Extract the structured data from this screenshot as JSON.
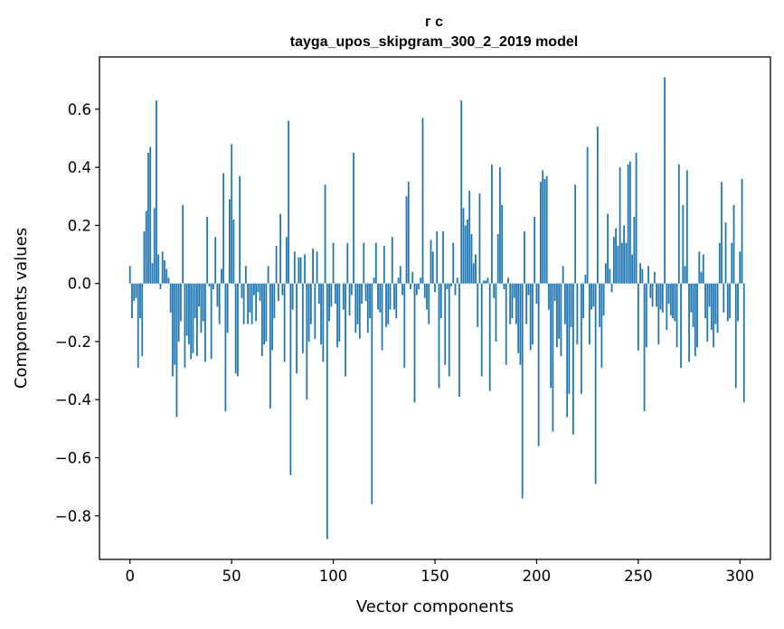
{
  "chart_data": {
    "type": "bar",
    "title": "г с",
    "subtitle": "tayga_upos_skipgram_300_2_2019 model",
    "xlabel": "Vector components",
    "ylabel": "Components values",
    "xlim": [
      -15,
      315
    ],
    "ylim": [
      -0.95,
      0.78
    ],
    "xticks": [
      0,
      50,
      100,
      150,
      200,
      250,
      300
    ],
    "xtick_labels": [
      "0",
      "50",
      "100",
      "150",
      "200",
      "250",
      "300"
    ],
    "yticks": [
      -0.8,
      -0.6,
      -0.4,
      -0.2,
      0.0,
      0.2,
      0.4,
      0.6
    ],
    "ytick_labels": [
      "−0.8",
      "−0.6",
      "−0.4",
      "−0.2",
      "0.0",
      "0.2",
      "0.4",
      "0.6"
    ],
    "bar_color": "#1f77b4",
    "values": [
      0.06,
      -0.12,
      -0.06,
      -0.05,
      -0.29,
      -0.12,
      -0.25,
      0.18,
      0.25,
      0.45,
      0.47,
      0.07,
      0.26,
      0.63,
      0.1,
      -0.02,
      0.11,
      0.08,
      0.05,
      0.02,
      -0.1,
      -0.32,
      -0.28,
      -0.46,
      -0.2,
      -0.13,
      0.27,
      -0.29,
      -0.18,
      -0.21,
      -0.26,
      -0.24,
      -0.12,
      -0.25,
      -0.08,
      -0.17,
      -0.13,
      -0.27,
      0.23,
      -0.01,
      -0.26,
      -0.02,
      0.16,
      -0.08,
      -0.14,
      0.05,
      0.38,
      -0.44,
      -0.17,
      0.29,
      0.48,
      0.22,
      -0.31,
      -0.32,
      0.37,
      -0.05,
      -0.14,
      0.06,
      -0.14,
      -0.1,
      -0.14,
      -0.04,
      -0.13,
      -0.03,
      -0.06,
      -0.25,
      -0.21,
      -0.2,
      0.06,
      -0.43,
      -0.23,
      -0.12,
      0.13,
      -0.06,
      0.24,
      -0.04,
      -0.27,
      0.16,
      0.56,
      -0.66,
      -0.09,
      0.11,
      -0.31,
      0.09,
      0.09,
      -0.24,
      0.1,
      -0.4,
      -0.2,
      -0.14,
      0.12,
      -0.19,
      0.11,
      -0.07,
      -0.21,
      -0.27,
      0.34,
      -0.88,
      -0.13,
      -0.08,
      0.14,
      -0.07,
      -0.22,
      -0.2,
      0.0,
      -0.09,
      -0.32,
      0.14,
      -0.11,
      -0.04,
      0.45,
      -0.17,
      -0.14,
      -0.19,
      -0.07,
      0.14,
      -0.06,
      -0.17,
      -0.12,
      -0.76,
      0.02,
      0.14,
      -0.09,
      -0.1,
      -0.23,
      0.13,
      -0.15,
      -0.14,
      -0.09,
      0.16,
      -0.09,
      -0.12,
      0.02,
      0.06,
      -0.04,
      -0.29,
      0.3,
      0.35,
      -0.02,
      0.04,
      -0.41,
      -0.04,
      -0.02,
      0.02,
      0.57,
      -0.05,
      -0.09,
      -0.14,
      0.15,
      0.11,
      -0.03,
      0.18,
      -0.36,
      -0.12,
      0.18,
      -0.28,
      -0.02,
      -0.32,
      -0.01,
      0.14,
      -0.04,
      0.02,
      -0.39,
      0.63,
      0.26,
      0.2,
      0.22,
      0.32,
      0.17,
      0.07,
      0.1,
      -0.15,
      0.31,
      -0.32,
      0.01,
      0.01,
      0.02,
      -0.37,
      0.41,
      -0.05,
      -0.2,
      0.17,
      0.4,
      0.27,
      -0.02,
      -0.28,
      0.02,
      -0.14,
      -0.12,
      -0.05,
      -0.14,
      -0.24,
      -0.28,
      -0.74,
      0.18,
      -0.14,
      -0.04,
      -0.23,
      -0.21,
      0.23,
      -0.07,
      -0.56,
      0.35,
      0.39,
      0.36,
      0.37,
      -0.09,
      -0.36,
      -0.51,
      -0.06,
      -0.22,
      -0.19,
      -0.25,
      0.06,
      -0.14,
      -0.46,
      -0.38,
      -0.15,
      -0.52,
      0.34,
      -0.21,
      0.0,
      -0.38,
      -0.12,
      0.03,
      0.47,
      -0.21,
      -0.09,
      -0.08,
      -0.69,
      0.54,
      -0.15,
      -0.29,
      -0.11,
      0.07,
      0.24,
      0.05,
      -0.03,
      0.16,
      0.19,
      0.13,
      0.4,
      0.14,
      0.2,
      0.14,
      0.41,
      0.42,
      0.1,
      0.23,
      0.45,
      -0.23,
      0.07,
      0.05,
      -0.44,
      -0.22,
      0.06,
      -0.05,
      -0.08,
      0.04,
      -0.08,
      -0.21,
      -0.09,
      -0.1,
      0.71,
      -0.16,
      -0.07,
      -0.11,
      -0.12,
      -0.13,
      -0.22,
      0.41,
      -0.29,
      0.27,
      0.06,
      0.39,
      -0.27,
      -0.1,
      -0.15,
      -0.25,
      -0.22,
      0.11,
      0.04,
      0.1,
      -0.12,
      -0.2,
      -0.08,
      -0.16,
      -0.22,
      -0.14,
      -0.17,
      0.14,
      0.35,
      -0.1,
      0.21,
      -0.13,
      -0.12,
      0.14,
      0.27,
      -0.36,
      -0.13,
      0.11,
      0.36,
      -0.41
    ]
  }
}
